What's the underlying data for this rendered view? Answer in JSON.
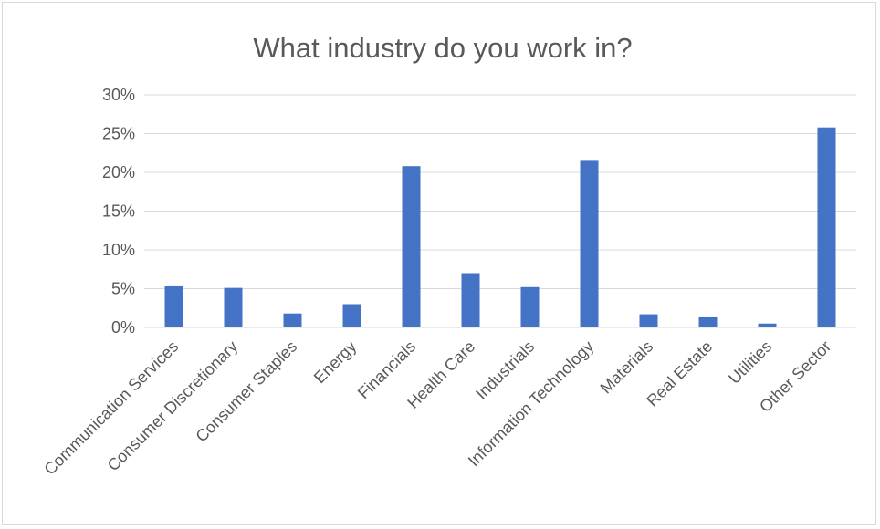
{
  "chart_data": {
    "type": "bar",
    "title": "What industry do you work in?",
    "categories": [
      "Communication Services",
      "Consumer Discretionary",
      "Consumer Staples",
      "Energy",
      "Financials",
      "Health Care",
      "Industrials",
      "Information Technology",
      "Materials",
      "Real Estate",
      "Utilities",
      "Other Sector"
    ],
    "values": [
      5.3,
      5.1,
      1.8,
      3.0,
      20.8,
      7.0,
      5.2,
      21.6,
      1.7,
      1.3,
      0.5,
      25.8
    ],
    "value_unit": "%",
    "ylim": [
      0,
      30
    ],
    "yticks": [
      "0%",
      "5%",
      "10%",
      "15%",
      "20%",
      "25%",
      "30%"
    ],
    "xlabel": "",
    "ylabel": "",
    "grid": true,
    "legend": "none",
    "bar_color": "#4472c4"
  }
}
